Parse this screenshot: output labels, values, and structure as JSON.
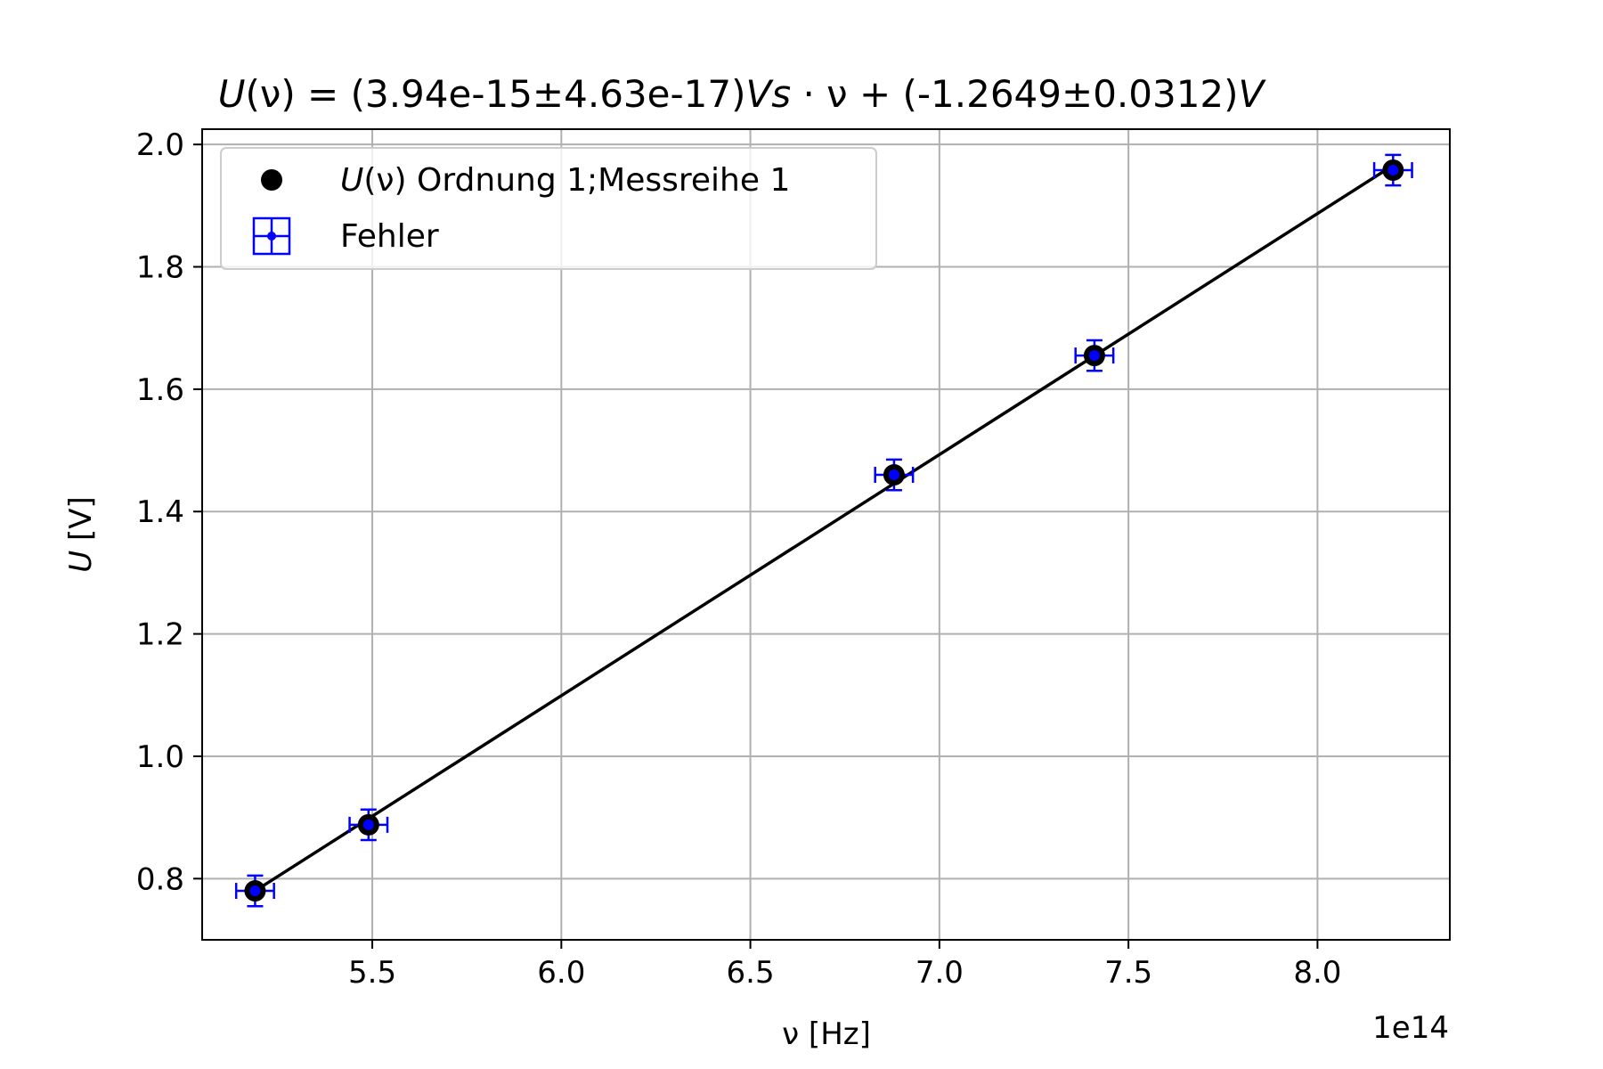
{
  "chart_data": {
    "type": "scatter",
    "title": {
      "lhs": "U",
      "arg": "(ν) = (3.94e-15±4.63e-17)",
      "unit1": "Vs",
      "mid": " · ν + (-1.2649±0.0312)",
      "unit2": "V"
    },
    "xlabel": "ν [Hz]",
    "ylabel": {
      "symbol": "U",
      "unit": " [V]"
    },
    "x_offset_text": "1e14",
    "x_scale_factor": 100000000000000.0,
    "xlim": [
      5.05,
      8.35
    ],
    "ylim": [
      0.7,
      2.025
    ],
    "xticks": [
      5.5,
      6.0,
      6.5,
      7.0,
      7.5,
      8.0
    ],
    "xtick_labels": [
      "5.5",
      "6.0",
      "6.5",
      "7.0",
      "7.5",
      "8.0"
    ],
    "yticks": [
      0.8,
      1.0,
      1.2,
      1.4,
      1.6,
      1.8,
      2.0
    ],
    "ytick_labels": [
      "0.8",
      "1.0",
      "1.2",
      "1.4",
      "1.6",
      "1.8",
      "2.0"
    ],
    "grid": true,
    "legend_position": "upper-left",
    "series": [
      {
        "name": "Ordnung 1;Messreihe 1",
        "name_prefix": "U",
        "name_arg": "(ν) ",
        "marker": "circle",
        "color": "#000000",
        "x": [
          5.19,
          5.49,
          6.88,
          7.41,
          8.2
        ],
        "y": [
          0.78,
          0.888,
          1.46,
          1.655,
          1.958
        ]
      },
      {
        "name": "Fehler",
        "marker": "errorbar",
        "color": "#0000ff",
        "x": [
          5.19,
          5.49,
          6.88,
          7.41,
          8.2
        ],
        "y": [
          0.78,
          0.888,
          1.46,
          1.655,
          1.958
        ],
        "x_err": [
          0.05,
          0.05,
          0.05,
          0.05,
          0.05
        ],
        "y_err": [
          0.025,
          0.025,
          0.025,
          0.025,
          0.025
        ]
      }
    ],
    "fit_line": {
      "slope": 3.94e-15,
      "intercept": -1.2649,
      "x_range": [
        5.19,
        8.2
      ],
      "color": "#000000"
    }
  }
}
